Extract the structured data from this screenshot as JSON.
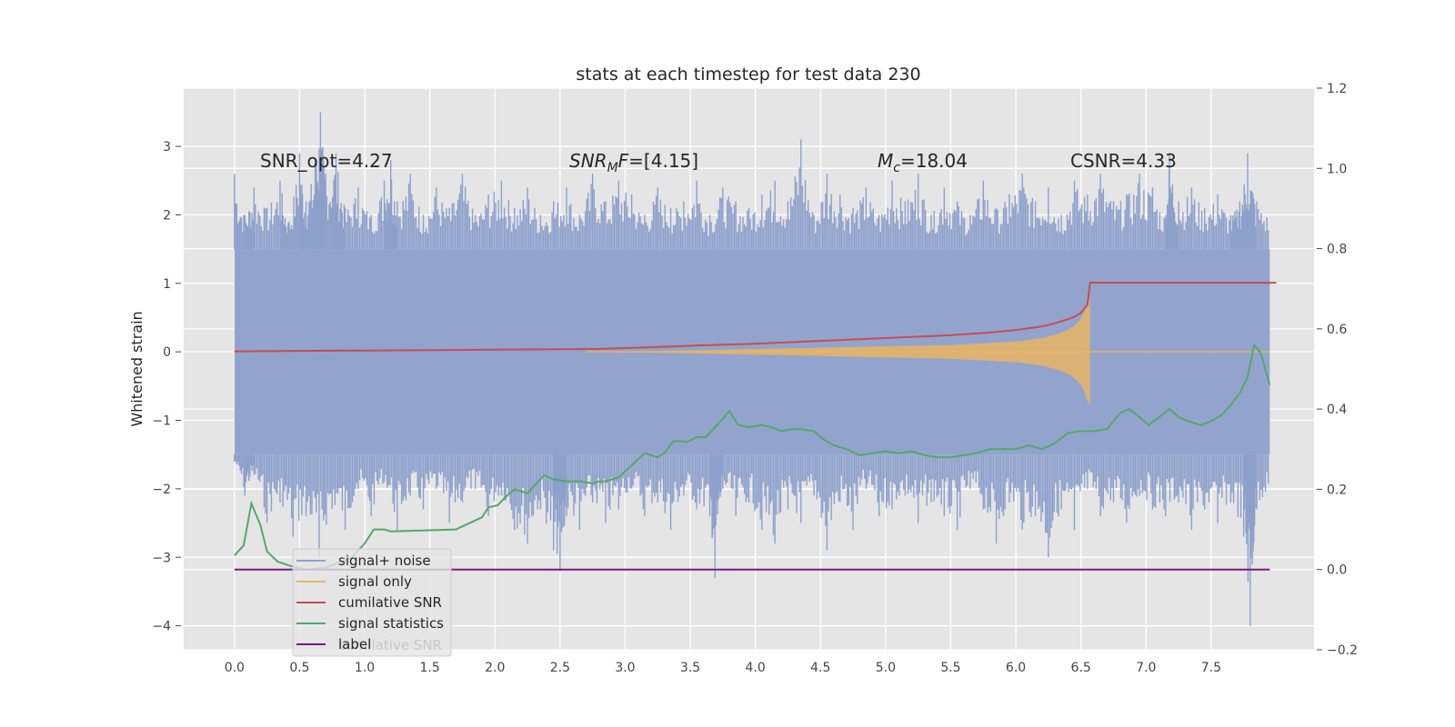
{
  "chart_data": {
    "type": "line",
    "title": "stats at each timestep for test data 230",
    "xlabel": "",
    "ylabel": "Whitened strain",
    "y2label": "",
    "xlim": [
      -0.39,
      8.29
    ],
    "ylim": [
      -4.35,
      3.85
    ],
    "y2lim": [
      -0.2,
      1.2
    ],
    "x_ticks": [
      "0.0",
      "0.5",
      "1.0",
      "1.5",
      "2.0",
      "2.5",
      "3.0",
      "3.5",
      "4.0",
      "4.5",
      "5.0",
      "5.5",
      "6.0",
      "6.5",
      "7.0",
      "7.5"
    ],
    "y_ticks": [
      "−4",
      "−3",
      "−2",
      "−1",
      "0",
      "1",
      "2",
      "3"
    ],
    "y2_ticks": [
      "−0.2",
      "0.0",
      "0.2",
      "0.4",
      "0.6",
      "0.8",
      "1.0",
      "1.2"
    ],
    "grid": true,
    "legend_position": "lower-left",
    "annotations": {
      "snr_opt": "SNR_opt=4.27",
      "snr_mf": "SNR_MF=[4.15]",
      "mc": "M_c=18.04",
      "csnr": "CSNR=4.33"
    },
    "series": [
      {
        "name": "signal+ noise",
        "axis": "left",
        "color": "#8da0cb",
        "style": "dense noise band",
        "band_upper_y": 1.5,
        "band_lower_y": -1.5,
        "peaks_x": [
          0.0,
          0.08,
          0.15,
          0.25,
          0.35,
          0.42,
          0.5,
          0.55,
          0.62,
          0.66,
          0.7,
          0.78,
          0.85,
          0.95,
          1.05,
          1.15,
          1.2,
          1.25,
          1.35,
          1.45,
          1.55,
          1.65,
          1.75,
          1.85,
          1.95,
          2.05,
          2.15,
          2.25,
          2.35,
          2.45,
          2.55,
          2.65,
          2.75,
          2.85,
          2.95,
          3.05,
          3.15,
          3.25,
          3.35,
          3.45,
          3.55,
          3.65,
          3.75,
          3.85,
          3.95,
          4.05,
          4.15,
          4.25,
          4.35,
          4.45,
          4.55,
          4.65,
          4.75,
          4.85,
          4.95,
          5.05,
          5.15,
          5.25,
          5.35,
          5.45,
          5.55,
          5.65,
          5.75,
          5.85,
          5.95,
          6.05,
          6.15,
          6.25,
          6.35,
          6.45,
          6.55,
          6.65,
          6.75,
          6.85,
          6.95,
          7.05,
          7.15,
          7.18,
          7.25,
          7.35,
          7.45,
          7.55,
          7.65,
          7.72,
          7.78,
          7.85,
          7.95
        ],
        "peaks_y": [
          2.6,
          2.0,
          2.4,
          2.1,
          2.5,
          1.9,
          2.9,
          2.2,
          2.8,
          3.5,
          2.6,
          2.9,
          2.1,
          2.4,
          2.0,
          2.5,
          2.8,
          2.2,
          2.6,
          2.0,
          2.4,
          2.1,
          2.6,
          2.0,
          2.3,
          2.5,
          2.1,
          2.4,
          2.0,
          2.2,
          2.4,
          2.0,
          2.6,
          2.2,
          2.5,
          2.3,
          2.0,
          2.4,
          2.1,
          2.2,
          2.5,
          2.0,
          2.4,
          2.2,
          2.1,
          2.3,
          2.5,
          2.2,
          3.1,
          2.0,
          2.6,
          2.3,
          2.1,
          2.4,
          2.0,
          2.5,
          2.2,
          2.6,
          2.0,
          2.4,
          2.2,
          2.0,
          2.5,
          2.1,
          2.3,
          2.6,
          2.2,
          2.4,
          2.0,
          2.5,
          2.3,
          2.6,
          2.2,
          2.3,
          2.6,
          2.4,
          2.0,
          2.9,
          2.2,
          2.4,
          2.1,
          2.3,
          2.0,
          2.2,
          2.9,
          2.2,
          2.0
        ],
        "troughs_x": [
          0.0,
          0.08,
          0.15,
          0.25,
          0.35,
          0.45,
          0.55,
          0.65,
          0.75,
          0.85,
          0.95,
          1.05,
          1.15,
          1.25,
          1.35,
          1.45,
          1.55,
          1.65,
          1.75,
          1.85,
          1.95,
          2.05,
          2.15,
          2.25,
          2.35,
          2.45,
          2.5,
          2.55,
          2.65,
          2.75,
          2.85,
          2.95,
          3.05,
          3.15,
          3.25,
          3.35,
          3.45,
          3.55,
          3.65,
          3.69,
          3.75,
          3.85,
          3.95,
          4.05,
          4.15,
          4.25,
          4.35,
          4.45,
          4.55,
          4.65,
          4.75,
          4.85,
          4.95,
          5.05,
          5.15,
          5.25,
          5.35,
          5.45,
          5.55,
          5.65,
          5.75,
          5.85,
          5.95,
          6.05,
          6.15,
          6.25,
          6.35,
          6.45,
          6.55,
          6.65,
          6.75,
          6.85,
          6.95,
          7.05,
          7.15,
          7.25,
          7.35,
          7.45,
          7.55,
          7.65,
          7.75,
          7.8,
          7.85,
          7.95
        ],
        "troughs_y": [
          -1.6,
          -2.1,
          -1.8,
          -2.5,
          -2.2,
          -2.7,
          -2.4,
          -3.0,
          -2.3,
          -2.6,
          -2.0,
          -2.4,
          -1.9,
          -2.6,
          -2.1,
          -2.3,
          -2.0,
          -2.5,
          -2.2,
          -2.0,
          -2.4,
          -2.1,
          -2.6,
          -2.8,
          -2.3,
          -2.9,
          -3.2,
          -2.4,
          -2.6,
          -2.2,
          -2.5,
          -2.3,
          -2.0,
          -2.4,
          -2.2,
          -2.6,
          -2.1,
          -2.3,
          -2.4,
          -3.3,
          -2.0,
          -2.4,
          -2.2,
          -2.6,
          -2.8,
          -2.3,
          -2.5,
          -2.1,
          -2.9,
          -2.2,
          -2.6,
          -2.0,
          -2.4,
          -2.3,
          -2.1,
          -2.5,
          -2.2,
          -2.4,
          -2.6,
          -2.0,
          -2.3,
          -2.8,
          -2.2,
          -2.6,
          -2.4,
          -3.0,
          -2.3,
          -2.6,
          -2.0,
          -2.4,
          -2.2,
          -2.5,
          -2.1,
          -2.3,
          -2.4,
          -2.2,
          -2.6,
          -2.3,
          -2.5,
          -2.2,
          -2.7,
          -4.0,
          -2.3,
          -2.0
        ]
      },
      {
        "name": "signal only",
        "axis": "left",
        "color": "#e7b563",
        "style": "chirp envelope",
        "x": [
          2.7,
          3.5,
          4.0,
          4.5,
          5.0,
          5.5,
          5.8,
          6.0,
          6.2,
          6.3,
          6.4,
          6.45,
          6.5,
          6.53,
          6.55,
          6.57
        ],
        "amplitude": [
          0.0,
          0.02,
          0.04,
          0.06,
          0.08,
          0.1,
          0.13,
          0.15,
          0.2,
          0.25,
          0.32,
          0.38,
          0.48,
          0.6,
          0.72,
          0.78
        ]
      },
      {
        "name": "cumilative SNR",
        "axis": "right",
        "color": "#c44e52",
        "x": [
          0.0,
          1.0,
          2.0,
          2.8,
          3.2,
          3.6,
          4.0,
          4.5,
          5.0,
          5.5,
          5.8,
          6.0,
          6.2,
          6.3,
          6.4,
          6.45,
          6.5,
          6.55,
          6.57,
          8.0
        ],
        "values": [
          0.544,
          0.546,
          0.548,
          0.55,
          0.554,
          0.559,
          0.563,
          0.57,
          0.577,
          0.584,
          0.591,
          0.597,
          0.606,
          0.614,
          0.624,
          0.63,
          0.64,
          0.66,
          0.715,
          0.715
        ]
      },
      {
        "name": "signal statistics",
        "axis": "right",
        "color": "#55a868",
        "x": [
          0.0,
          0.07,
          0.13,
          0.2,
          0.25,
          0.33,
          0.42,
          0.55,
          0.7,
          0.9,
          1.0,
          1.07,
          1.15,
          1.2,
          1.7,
          1.8,
          1.9,
          1.95,
          2.02,
          2.08,
          2.15,
          2.25,
          2.32,
          2.38,
          2.45,
          2.55,
          2.65,
          2.75,
          2.8,
          2.85,
          2.95,
          3.0,
          3.05,
          3.1,
          3.15,
          3.2,
          3.25,
          3.3,
          3.37,
          3.43,
          3.48,
          3.55,
          3.62,
          3.72,
          3.8,
          3.87,
          3.95,
          4.05,
          4.12,
          4.2,
          4.28,
          4.35,
          4.45,
          4.52,
          4.6,
          4.7,
          4.8,
          4.9,
          5.0,
          5.1,
          5.2,
          5.3,
          5.4,
          5.5,
          5.6,
          5.7,
          5.8,
          5.9,
          6.0,
          6.1,
          6.2,
          6.3,
          6.4,
          6.5,
          6.6,
          6.7,
          6.8,
          6.87,
          6.95,
          7.02,
          7.1,
          7.18,
          7.25,
          7.32,
          7.42,
          7.5,
          7.58,
          7.65,
          7.72,
          7.78,
          7.83,
          7.88,
          7.95
        ],
        "values": [
          0.035,
          0.06,
          0.165,
          0.11,
          0.045,
          0.02,
          0.01,
          0.0,
          0.005,
          0.03,
          0.065,
          0.1,
          0.1,
          0.095,
          0.1,
          0.115,
          0.13,
          0.155,
          0.16,
          0.18,
          0.2,
          0.19,
          0.215,
          0.235,
          0.225,
          0.22,
          0.22,
          0.215,
          0.22,
          0.22,
          0.23,
          0.245,
          0.26,
          0.275,
          0.29,
          0.285,
          0.28,
          0.29,
          0.32,
          0.32,
          0.318,
          0.33,
          0.33,
          0.365,
          0.395,
          0.36,
          0.355,
          0.36,
          0.355,
          0.345,
          0.35,
          0.35,
          0.345,
          0.325,
          0.31,
          0.3,
          0.285,
          0.29,
          0.295,
          0.29,
          0.295,
          0.285,
          0.28,
          0.28,
          0.285,
          0.29,
          0.3,
          0.3,
          0.3,
          0.31,
          0.3,
          0.315,
          0.34,
          0.345,
          0.345,
          0.35,
          0.39,
          0.4,
          0.38,
          0.36,
          0.38,
          0.4,
          0.38,
          0.37,
          0.36,
          0.37,
          0.385,
          0.41,
          0.44,
          0.48,
          0.56,
          0.54,
          0.46
        ]
      },
      {
        "name": "label",
        "axis": "right",
        "color": "#7b1a7e",
        "x": [
          0.0,
          7.95
        ],
        "values": [
          0.0,
          0.0
        ]
      }
    ],
    "legend_hidden_text": "cumilative SNR"
  }
}
